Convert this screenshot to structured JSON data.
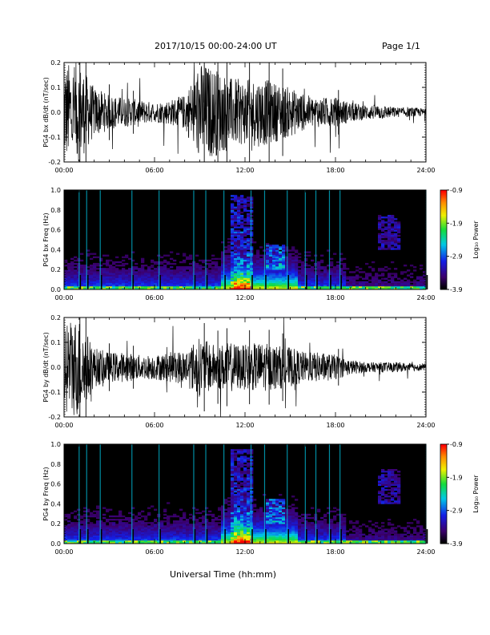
{
  "header": {
    "title": "2017/10/15   00:00-24:00 UT",
    "page": "Page 1/1"
  },
  "xlabel": "Universal Time (hh:mm)",
  "chart_data": [
    {
      "type": "line",
      "ylabel": "PG4 bx dB/dt (nT/sec)",
      "ylim": [
        -0.2,
        0.2
      ],
      "yticks": [
        "0.2",
        "0.1",
        "0.0",
        "-0.1",
        "-0.2"
      ],
      "xlim": [
        "00:00",
        "24:00"
      ],
      "xticks": [
        "00:00",
        "06:00",
        "12:00",
        "18:00",
        "24:00"
      ],
      "series": [
        {
          "x": [
            0,
            1,
            2,
            3,
            4,
            5,
            6,
            7,
            8,
            9,
            10,
            11,
            12,
            13,
            14,
            15,
            16,
            17,
            18,
            19,
            20,
            21,
            22,
            23,
            24
          ],
          "envelope": [
            0.2,
            0.2,
            0.1,
            0.07,
            0.06,
            0.05,
            0.04,
            0.05,
            0.07,
            0.2,
            0.18,
            0.14,
            0.13,
            0.14,
            0.12,
            0.1,
            0.07,
            0.06,
            0.06,
            0.04,
            0.03,
            0.03,
            0.02,
            0.02,
            0.015
          ]
        }
      ]
    },
    {
      "type": "heatmap",
      "ylabel": "PG4 bx Freq (Hz)",
      "ylim": [
        0.0,
        1.0
      ],
      "yticks": [
        "1.0",
        "0.8",
        "0.6",
        "0.4",
        "0.2",
        "0.0"
      ],
      "xlim": [
        "00:00",
        "24:00"
      ],
      "xticks": [
        "00:00",
        "06:00",
        "12:00",
        "18:00",
        "24:00"
      ],
      "colorbar": {
        "label": "Log₁₀ Power",
        "ticks": [
          "-0.9",
          "-1.9",
          "-2.9",
          "-3.9"
        ],
        "range": [
          -3.9,
          -0.9
        ]
      },
      "hot_hours": [
        {
          "h": 12,
          "f": 0.9
        },
        {
          "h": 13.5,
          "f": 0.4
        },
        {
          "h": 14,
          "f": 0.3
        },
        {
          "h": 21.5,
          "f": 0.55
        }
      ]
    },
    {
      "type": "line",
      "ylabel": "PG4 by dB/dt (nT/sec)",
      "ylim": [
        -0.2,
        0.2
      ],
      "yticks": [
        "0.2",
        "0.1",
        "0.0",
        "-0.1",
        "-0.2"
      ],
      "xlim": [
        "00:00",
        "24:00"
      ],
      "xticks": [
        "00:00",
        "06:00",
        "12:00",
        "18:00",
        "24:00"
      ],
      "series": [
        {
          "x": [
            0,
            1,
            2,
            3,
            4,
            5,
            6,
            7,
            8,
            9,
            10,
            11,
            12,
            13,
            14,
            15,
            16,
            17,
            18,
            19,
            20,
            21,
            22,
            23,
            24
          ],
          "envelope": [
            0.2,
            0.2,
            0.08,
            0.06,
            0.06,
            0.05,
            0.05,
            0.06,
            0.07,
            0.12,
            0.09,
            0.1,
            0.09,
            0.1,
            0.09,
            0.08,
            0.06,
            0.06,
            0.05,
            0.03,
            0.02,
            0.02,
            0.02,
            0.015,
            0.015
          ]
        }
      ]
    },
    {
      "type": "heatmap",
      "ylabel": "PG4 by Freq (Hz)",
      "ylim": [
        0.0,
        1.0
      ],
      "yticks": [
        "1.0",
        "0.8",
        "0.6",
        "0.4",
        "0.2",
        "0.0"
      ],
      "xlim": [
        "00:00",
        "24:00"
      ],
      "xticks": [
        "00:00",
        "06:00",
        "12:00",
        "18:00",
        "24:00"
      ],
      "colorbar": {
        "label": "Log₁₀ Power",
        "ticks": [
          "-0.9",
          "-1.9",
          "-2.9",
          "-3.9"
        ],
        "range": [
          -3.9,
          -0.9
        ]
      },
      "hot_hours": [
        {
          "h": 12,
          "f": 0.9
        },
        {
          "h": 13.5,
          "f": 0.4
        },
        {
          "h": 14,
          "f": 0.3
        },
        {
          "h": 21.5,
          "f": 0.55
        }
      ]
    }
  ]
}
